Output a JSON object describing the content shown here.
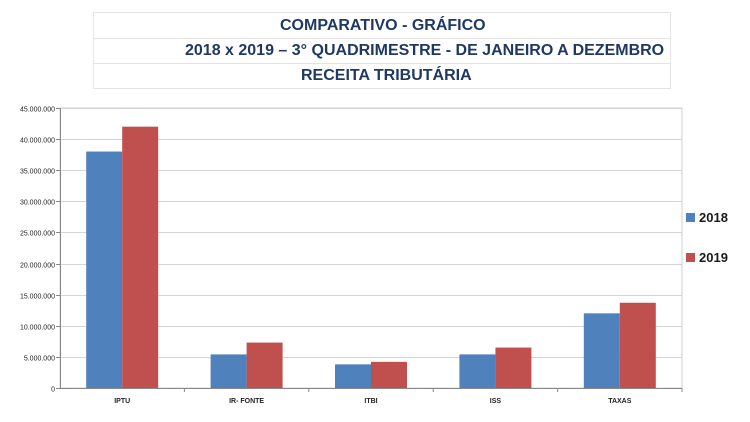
{
  "header": {
    "line1": "COMPARATIVO - GRÁFICO",
    "line2": "2018  x  2019 – 3° QUADRIMESTRE - DE JANEIRO A DEZEMBRO",
    "line3": "RECEITA TRIBUTÁRIA"
  },
  "chart_data": {
    "type": "bar",
    "categories": [
      "IPTU",
      "IR- FONTE",
      "ITBI",
      "ISS",
      "TAXAS"
    ],
    "series": [
      {
        "name": "2018",
        "color": "#4f81bd",
        "values": [
          38000000,
          5400000,
          3800000,
          5400000,
          12000000
        ]
      },
      {
        "name": "2019",
        "color": "#c0504d",
        "values": [
          42000000,
          7300000,
          4200000,
          6500000,
          13700000
        ]
      }
    ],
    "yticks": [
      "0",
      "5.000.000",
      "10.000.000",
      "15.000.000",
      "20.000.000",
      "25.000.000",
      "30.000.000",
      "35.000.000",
      "40.000.000",
      "45.000.000"
    ],
    "ylim": [
      0,
      45000000
    ],
    "grid": true,
    "legend": "right"
  }
}
